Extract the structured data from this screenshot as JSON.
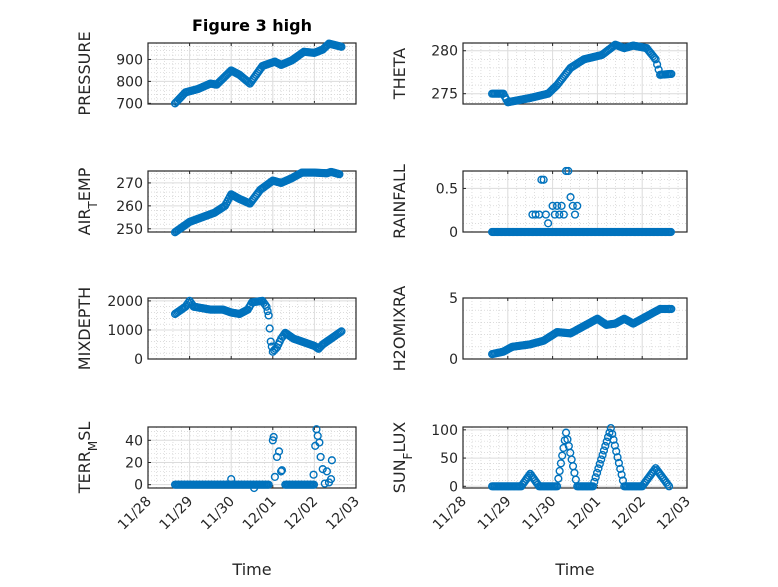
{
  "chart_data": {
    "type": "scatter",
    "title": "Figure 3 high",
    "xlabel": "Time",
    "xticks": [
      "11/28",
      "11/29",
      "11/30",
      "12/01",
      "12/02",
      "12/03"
    ],
    "xlim_days": [
      0,
      5
    ],
    "marker_color": "#0072BD",
    "grid": true,
    "subplots": [
      {
        "ylabel_parts": [
          "PRESSURE"
        ],
        "ylim": [
          697,
          975
        ],
        "yticks": [
          700,
          800,
          900
        ],
        "mode": "trend",
        "points": [
          [
            0.65,
            700
          ],
          [
            0.9,
            750
          ],
          [
            1.2,
            765
          ],
          [
            1.5,
            790
          ],
          [
            1.65,
            785
          ],
          [
            2.0,
            850
          ],
          [
            2.2,
            830
          ],
          [
            2.45,
            790
          ],
          [
            2.75,
            870
          ],
          [
            3.05,
            890
          ],
          [
            3.2,
            875
          ],
          [
            3.45,
            895
          ],
          [
            3.75,
            935
          ],
          [
            4.0,
            930
          ],
          [
            4.2,
            945
          ],
          [
            4.35,
            972
          ],
          [
            4.5,
            965
          ],
          [
            4.65,
            958
          ]
        ]
      },
      {
        "ylabel_parts": [
          "THETA"
        ],
        "ylim": [
          273.8,
          280.9
        ],
        "yticks": [
          275,
          280
        ],
        "mode": "trend",
        "points": [
          [
            0.65,
            275
          ],
          [
            0.9,
            275
          ],
          [
            1.0,
            274
          ],
          [
            1.5,
            274.5
          ],
          [
            1.9,
            275
          ],
          [
            2.1,
            276
          ],
          [
            2.4,
            278
          ],
          [
            2.7,
            279
          ],
          [
            3.1,
            279.5
          ],
          [
            3.4,
            280.7
          ],
          [
            3.6,
            280.3
          ],
          [
            3.8,
            280.6
          ],
          [
            4.1,
            280.3
          ],
          [
            4.3,
            279
          ],
          [
            4.4,
            277.2
          ],
          [
            4.65,
            277.3
          ]
        ]
      },
      {
        "ylabel_parts": [
          "AIR",
          "T",
          "EMP"
        ],
        "ylim": [
          248.6,
          275.2
        ],
        "yticks": [
          250,
          260,
          270
        ],
        "mode": "trend",
        "points": [
          [
            0.65,
            248.5
          ],
          [
            1.0,
            253
          ],
          [
            1.3,
            255
          ],
          [
            1.6,
            257
          ],
          [
            1.85,
            260
          ],
          [
            2.0,
            265
          ],
          [
            2.2,
            263
          ],
          [
            2.45,
            261
          ],
          [
            2.7,
            267
          ],
          [
            3.0,
            271
          ],
          [
            3.2,
            270
          ],
          [
            3.45,
            272
          ],
          [
            3.7,
            274.5
          ],
          [
            4.0,
            274.5
          ],
          [
            4.3,
            274.2
          ],
          [
            4.4,
            274.8
          ],
          [
            4.6,
            273.8
          ]
        ]
      },
      {
        "ylabel_parts": [
          "RAINFALL"
        ],
        "ylim": [
          0,
          0.7
        ],
        "yticks": [
          0,
          0.5
        ],
        "mode": "points",
        "baseline": [
          [
            0.65,
            4.65,
            0
          ]
        ],
        "points": [
          [
            1.55,
            0.2
          ],
          [
            1.62,
            0.2
          ],
          [
            1.7,
            0.2
          ],
          [
            1.75,
            0.6
          ],
          [
            1.8,
            0.6
          ],
          [
            1.85,
            0.2
          ],
          [
            1.9,
            0.1
          ],
          [
            2.0,
            0.3
          ],
          [
            2.05,
            0.2
          ],
          [
            2.1,
            0.3
          ],
          [
            2.15,
            0.2
          ],
          [
            2.2,
            0.3
          ],
          [
            2.25,
            0.2
          ],
          [
            2.3,
            0.7
          ],
          [
            2.35,
            0.7
          ],
          [
            2.4,
            0.4
          ],
          [
            2.45,
            0.3
          ],
          [
            2.5,
            0.2
          ],
          [
            2.55,
            0.3
          ]
        ]
      },
      {
        "ylabel_parts": [
          "MIXDEPTH"
        ],
        "ylim": [
          0,
          2100
        ],
        "yticks": [
          0,
          1000,
          2000
        ],
        "mode": "trend",
        "points": [
          [
            0.65,
            1550
          ],
          [
            0.9,
            1800
          ],
          [
            1.0,
            2000
          ],
          [
            1.1,
            1800
          ],
          [
            1.5,
            1700
          ],
          [
            1.8,
            1700
          ],
          [
            2.0,
            1600
          ],
          [
            2.2,
            1550
          ],
          [
            2.4,
            1700
          ],
          [
            2.5,
            1950
          ],
          [
            2.75,
            2000
          ],
          [
            2.85,
            1800
          ],
          [
            2.9,
            1500
          ],
          [
            2.95,
            600
          ],
          [
            3.0,
            250
          ],
          [
            3.1,
            400
          ],
          [
            3.2,
            700
          ],
          [
            3.3,
            900
          ],
          [
            3.5,
            700
          ],
          [
            3.8,
            550
          ],
          [
            4.0,
            450
          ],
          [
            4.1,
            350
          ],
          [
            4.2,
            500
          ],
          [
            4.4,
            700
          ],
          [
            4.65,
            950
          ]
        ]
      },
      {
        "ylabel_parts": [
          "H2OMIXRA"
        ],
        "ylim": [
          0,
          5
        ],
        "yticks": [
          0,
          5
        ],
        "mode": "trend",
        "points": [
          [
            0.65,
            0.4
          ],
          [
            0.9,
            0.6
          ],
          [
            1.1,
            1.0
          ],
          [
            1.5,
            1.2
          ],
          [
            1.8,
            1.5
          ],
          [
            2.1,
            2.2
          ],
          [
            2.4,
            2.1
          ],
          [
            2.6,
            2.5
          ],
          [
            2.8,
            2.9
          ],
          [
            3.0,
            3.3
          ],
          [
            3.2,
            2.8
          ],
          [
            3.4,
            2.9
          ],
          [
            3.6,
            3.3
          ],
          [
            3.8,
            2.9
          ],
          [
            4.1,
            3.5
          ],
          [
            4.4,
            4.1
          ],
          [
            4.65,
            4.1
          ]
        ]
      },
      {
        "ylabel_parts": [
          "TERR",
          "M",
          "SL"
        ],
        "ylim": [
          -3,
          52
        ],
        "yticks": [
          0,
          20,
          40
        ],
        "mode": "points",
        "baseline": [
          [
            0.65,
            2.9,
            0
          ],
          [
            3.3,
            4.0,
            0
          ]
        ],
        "points": [
          [
            2.0,
            5
          ],
          [
            2.55,
            -3
          ],
          [
            3.0,
            40
          ],
          [
            3.02,
            43
          ],
          [
            3.05,
            7
          ],
          [
            3.1,
            25
          ],
          [
            3.15,
            30
          ],
          [
            3.2,
            12
          ],
          [
            3.22,
            13
          ],
          [
            3.98,
            9
          ],
          [
            4.02,
            35
          ],
          [
            4.05,
            50
          ],
          [
            4.08,
            44
          ],
          [
            4.12,
            38
          ],
          [
            4.15,
            25
          ],
          [
            4.2,
            14
          ],
          [
            4.25,
            1
          ],
          [
            4.3,
            12
          ],
          [
            4.35,
            2
          ],
          [
            4.4,
            5
          ],
          [
            4.42,
            22
          ]
        ]
      },
      {
        "ylabel_parts": [
          "SUN",
          "F",
          "LUX"
        ],
        "ylim": [
          -3,
          105
        ],
        "yticks": [
          0,
          50,
          100
        ],
        "mode": "trend",
        "points": [
          [
            0.65,
            0
          ],
          [
            1.3,
            0
          ],
          [
            1.5,
            22
          ],
          [
            1.7,
            0
          ],
          [
            2.1,
            0
          ],
          [
            2.3,
            95
          ],
          [
            2.55,
            0
          ],
          [
            2.9,
            0
          ],
          [
            3.3,
            103
          ],
          [
            3.6,
            0
          ],
          [
            4.0,
            0
          ],
          [
            4.3,
            32
          ],
          [
            4.6,
            0
          ]
        ]
      }
    ]
  }
}
